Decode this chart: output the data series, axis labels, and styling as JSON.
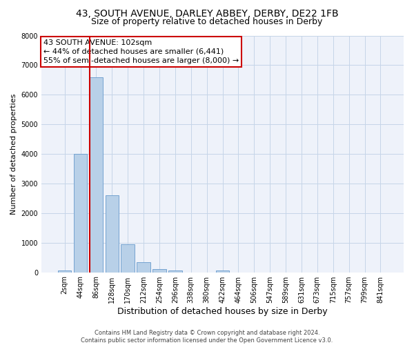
{
  "title_line1": "43, SOUTH AVENUE, DARLEY ABBEY, DERBY, DE22 1FB",
  "title_line2": "Size of property relative to detached houses in Derby",
  "xlabel": "Distribution of detached houses by size in Derby",
  "ylabel": "Number of detached properties",
  "bar_labels": [
    "2sqm",
    "44sqm",
    "86sqm",
    "128sqm",
    "170sqm",
    "212sqm",
    "254sqm",
    "296sqm",
    "338sqm",
    "380sqm",
    "422sqm",
    "464sqm",
    "506sqm",
    "547sqm",
    "589sqm",
    "631sqm",
    "673sqm",
    "715sqm",
    "757sqm",
    "799sqm",
    "841sqm"
  ],
  "bar_values": [
    50,
    4000,
    6600,
    2600,
    950,
    330,
    100,
    60,
    0,
    0,
    60,
    0,
    0,
    0,
    0,
    0,
    0,
    0,
    0,
    0,
    0
  ],
  "bar_color": "#b8d0e8",
  "bar_edgecolor": "#6699cc",
  "vline_x_index": 2,
  "vline_color": "#cc0000",
  "ylim": [
    0,
    8000
  ],
  "yticks": [
    0,
    1000,
    2000,
    3000,
    4000,
    5000,
    6000,
    7000,
    8000
  ],
  "annotation_title": "43 SOUTH AVENUE: 102sqm",
  "annotation_line1": "← 44% of detached houses are smaller (6,441)",
  "annotation_line2": "55% of semi-detached houses are larger (8,000) →",
  "annotation_box_color": "#cc0000",
  "footer_line1": "Contains HM Land Registry data © Crown copyright and database right 2024.",
  "footer_line2": "Contains public sector information licensed under the Open Government Licence v3.0.",
  "bg_color": "#eef2fa",
  "grid_color": "#c5d5e8",
  "title1_fontsize": 10,
  "title2_fontsize": 9,
  "ylabel_fontsize": 8,
  "xlabel_fontsize": 9,
  "tick_fontsize": 7,
  "footer_fontsize": 6,
  "annot_fontsize": 8
}
